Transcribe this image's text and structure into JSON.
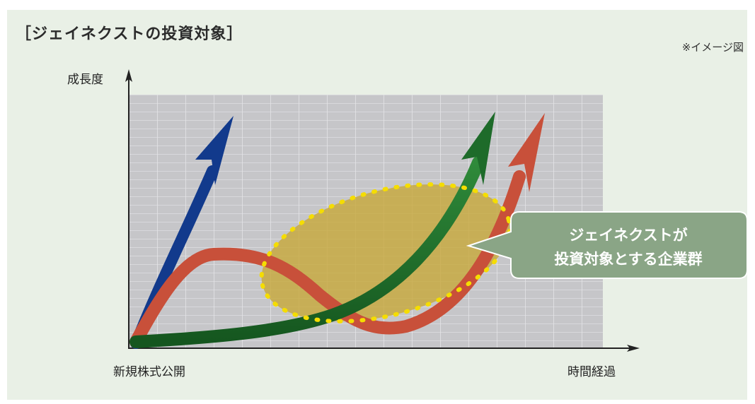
{
  "header": {
    "title": "［ジェイネクストの投資対象］",
    "note": "※イメージ図"
  },
  "axes": {
    "y_label": "成長度",
    "x_start_label": "新規株式公開",
    "x_end_label": "時間経過"
  },
  "callout": {
    "line1": "ジェイネクストが",
    "line2": "投資対象とする企業群"
  },
  "colors": {
    "background": "#e9f0e6",
    "grid": "#c6c6c9",
    "blue_arrow": "#123a8c",
    "green_arrow": "#1e6b2a",
    "red_arrow": "#c8503a",
    "highlight": "#c7a83a",
    "dots": "#f5dd00",
    "callout": "#8aa586"
  },
  "arrows": [
    {
      "color": "blue",
      "icon": "blue-arrow-icon"
    },
    {
      "color": "green",
      "icon": "green-arrow-icon"
    },
    {
      "color": "red",
      "icon": "red-arrow-icon"
    }
  ]
}
